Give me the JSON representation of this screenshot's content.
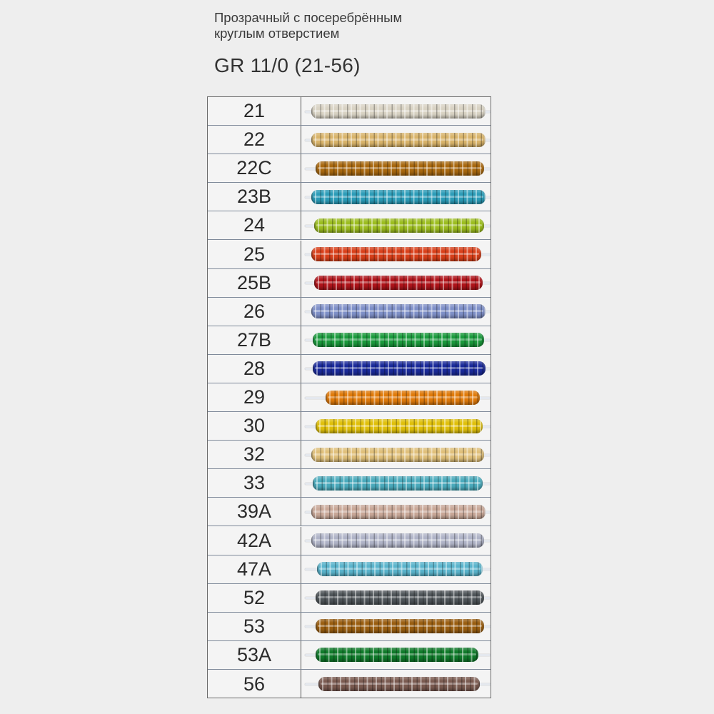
{
  "header": {
    "subtitle_line1": "Прозрачный с посеребрённым",
    "subtitle_line2": "круглым отверстием",
    "title": "GR 11/0 (21-56)"
  },
  "rows": [
    {
      "code": "21",
      "color": "#d9d3c4"
    },
    {
      "code": "22",
      "color": "#d9b46a"
    },
    {
      "code": "22C",
      "color": "#a8680f"
    },
    {
      "code": "23B",
      "color": "#2b9cb8"
    },
    {
      "code": "24",
      "color": "#9cbd1f"
    },
    {
      "code": "25",
      "color": "#d9401a"
    },
    {
      "code": "25B",
      "color": "#b0141a"
    },
    {
      "code": "26",
      "color": "#7f90c8"
    },
    {
      "code": "27B",
      "color": "#1a9a3c"
    },
    {
      "code": "28",
      "color": "#1a2a9a"
    },
    {
      "code": "29",
      "color": "#e07a0a"
    },
    {
      "code": "30",
      "color": "#e0c00a"
    },
    {
      "code": "32",
      "color": "#e0c07a"
    },
    {
      "code": "33",
      "color": "#4aaabc"
    },
    {
      "code": "39A",
      "color": "#c9a898"
    },
    {
      "code": "42A",
      "color": "#b0b4c8"
    },
    {
      "code": "47A",
      "color": "#5ab4cc"
    },
    {
      "code": "52",
      "color": "#4e5458"
    },
    {
      "code": "53",
      "color": "#9a5e10"
    },
    {
      "code": "53A",
      "color": "#0f7a2a"
    },
    {
      "code": "56",
      "color": "#7a5a50"
    }
  ]
}
